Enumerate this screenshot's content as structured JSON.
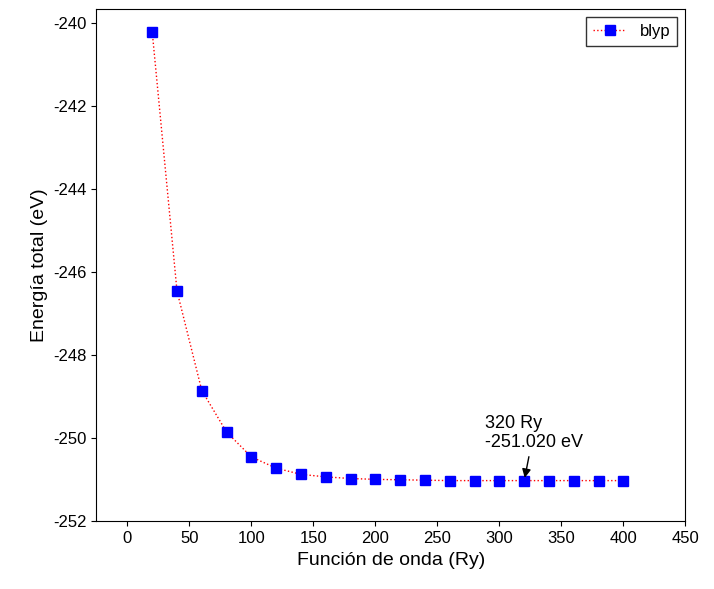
{
  "chart_data": {
    "type": "line",
    "x_label": "Función de onda (Ry)",
    "y_label": "Energía total (eV)",
    "x": [
      20,
      40,
      60,
      80,
      100,
      120,
      140,
      160,
      180,
      200,
      220,
      240,
      260,
      280,
      300,
      320,
      340,
      360,
      380,
      400
    ],
    "series": [
      {
        "name": "blyp",
        "color": "#0000ff",
        "marker": "square",
        "line_style": "dotted",
        "values": [
          -240.2,
          -246.45,
          -248.85,
          -249.85,
          -250.45,
          -250.72,
          -250.87,
          -250.93,
          -250.97,
          -250.99,
          -251.0,
          -251.01,
          -251.02,
          -251.02,
          -251.02,
          -251.02,
          -251.02,
          -251.02,
          -251.02,
          -251.02
        ]
      }
    ],
    "xlim": [
      -25,
      450
    ],
    "ylim": [
      -252,
      -239.65
    ],
    "xticks": [
      0,
      50,
      100,
      150,
      200,
      250,
      300,
      350,
      400,
      450
    ],
    "yticks": [
      -252,
      -250,
      -248,
      -246,
      -244,
      -242,
      -240
    ],
    "grid": false,
    "legend": "upper right",
    "annotations": [
      {
        "text": "320 Ry\n-251.020 eV",
        "x": 320,
        "y": -251.02
      }
    ]
  }
}
